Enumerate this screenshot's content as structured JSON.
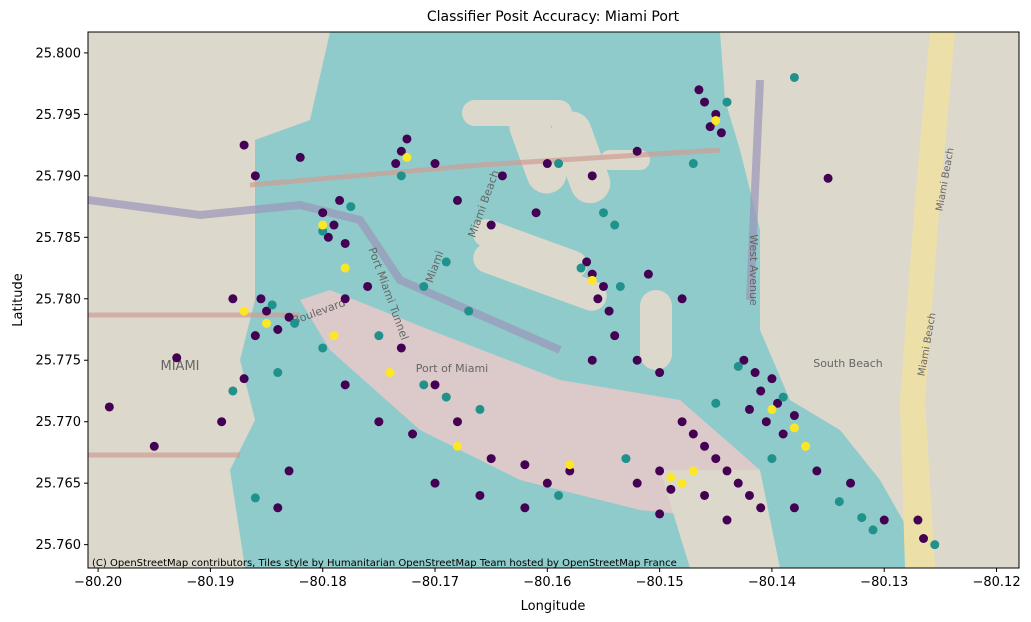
{
  "chart_data": {
    "type": "scatter",
    "title": "Classifier Posit Accuracy: Miami Port",
    "xlabel": "Longitude",
    "ylabel": "Latitude",
    "attribution": "(C) OpenStreetMap contributors, Tiles style by Humanitarian OpenStreetMap Team hosted by OpenStreetMap France",
    "map_labels": [
      "MIAMI",
      "Port of Miami",
      "Port Miami Tunnel",
      "Boulevard",
      "Miami",
      "Miami Beach",
      "West Avenue",
      "South Beach",
      "Miami Beach",
      "Miami Beach"
    ],
    "xlim": [
      -80.2009,
      -80.118
    ],
    "ylim": [
      25.7581,
      25.8017
    ],
    "xticks": [
      {
        "value": -80.2,
        "label": "−80.20"
      },
      {
        "value": -80.19,
        "label": "−80.19"
      },
      {
        "value": -80.18,
        "label": "−80.18"
      },
      {
        "value": -80.17,
        "label": "−80.17"
      },
      {
        "value": -80.16,
        "label": "−80.16"
      },
      {
        "value": -80.15,
        "label": "−80.15"
      },
      {
        "value": -80.14,
        "label": "−80.14"
      },
      {
        "value": -80.13,
        "label": "−80.13"
      },
      {
        "value": -80.12,
        "label": "−80.12"
      }
    ],
    "yticks": [
      {
        "value": 25.76,
        "label": "25.760"
      },
      {
        "value": 25.765,
        "label": "25.765"
      },
      {
        "value": 25.77,
        "label": "25.770"
      },
      {
        "value": 25.775,
        "label": "25.775"
      },
      {
        "value": 25.78,
        "label": "25.780"
      },
      {
        "value": 25.785,
        "label": "25.785"
      },
      {
        "value": 25.79,
        "label": "25.790"
      },
      {
        "value": 25.795,
        "label": "25.795"
      },
      {
        "value": 25.8,
        "label": "25.800"
      }
    ],
    "series": [
      {
        "color": "#440154",
        "x": [
          -80.185,
          -80.184,
          -80.186,
          -80.183,
          -80.1855,
          -80.18,
          -80.179,
          -80.1785,
          -80.1795,
          -80.178,
          -80.173,
          -80.1725,
          -80.1735,
          -80.146,
          -80.145,
          -80.1455,
          -80.1465,
          -80.1445,
          -80.156,
          -80.155,
          -80.1555,
          -80.1545,
          -80.1565,
          -80.1415,
          -80.141,
          -80.142,
          -80.1405,
          -80.14,
          -80.1425,
          -80.1395,
          -80.139,
          -80.138,
          -80.147,
          -80.146,
          -80.145,
          -80.144,
          -80.143,
          -80.148,
          -80.142,
          -80.141,
          -80.15,
          -80.152,
          -80.149,
          -80.187,
          -80.186,
          -80.182,
          -80.188,
          -80.193,
          -80.199,
          -80.195,
          -80.189,
          -80.187,
          -80.183,
          -80.184,
          -80.178,
          -80.175,
          -80.172,
          -80.17,
          -80.168,
          -80.165,
          -80.162,
          -80.16,
          -80.158,
          -80.156,
          -80.154,
          -80.152,
          -80.15,
          -80.148,
          -80.151,
          -80.161,
          -80.165,
          -80.16,
          -80.164,
          -80.168,
          -80.17,
          -80.156,
          -80.152,
          -80.135,
          -80.138,
          -80.133,
          -80.13,
          -80.1265,
          -80.127,
          -80.136,
          -80.144,
          -80.146,
          -80.15,
          -80.162,
          -80.166,
          -80.17,
          -80.173,
          -80.178,
          -80.176
        ],
        "values": [
          25.779,
          25.7775,
          25.777,
          25.7785,
          25.78,
          25.787,
          25.786,
          25.788,
          25.785,
          25.7845,
          25.792,
          25.793,
          25.791,
          25.796,
          25.795,
          25.794,
          25.797,
          25.7935,
          25.782,
          25.781,
          25.78,
          25.779,
          25.783,
          25.774,
          25.7725,
          25.771,
          25.77,
          25.7735,
          25.775,
          25.7715,
          25.769,
          25.7705,
          25.769,
          25.768,
          25.767,
          25.766,
          25.765,
          25.77,
          25.764,
          25.763,
          25.766,
          25.765,
          25.7645,
          25.7925,
          25.79,
          25.7915,
          25.78,
          25.7752,
          25.7712,
          25.768,
          25.77,
          25.7735,
          25.766,
          25.763,
          25.773,
          25.77,
          25.769,
          25.773,
          25.77,
          25.767,
          25.7665,
          25.765,
          25.766,
          25.775,
          25.777,
          25.775,
          25.774,
          25.78,
          25.782,
          25.787,
          25.786,
          25.791,
          25.79,
          25.788,
          25.791,
          25.79,
          25.792,
          25.7898,
          25.763,
          25.765,
          25.762,
          25.7605,
          25.762,
          25.766,
          25.762,
          25.764,
          25.7625,
          25.763,
          25.764,
          25.765,
          25.776,
          25.78,
          25.781
        ]
      },
      {
        "color": "#21918c",
        "x": [
          -80.1845,
          -80.1825,
          -80.18,
          -80.1775,
          -80.173,
          -80.144,
          -80.147,
          -80.157,
          -80.1535,
          -80.143,
          -80.139,
          -80.145,
          -80.14,
          -80.153,
          -80.159,
          -80.166,
          -80.169,
          -80.171,
          -80.175,
          -80.18,
          -80.184,
          -80.188,
          -80.186,
          -80.171,
          -80.169,
          -80.167,
          -80.155,
          -80.154,
          -80.134,
          -80.131,
          -80.1255,
          -80.132,
          -80.159,
          -80.138
        ],
        "values": [
          25.7795,
          25.778,
          25.7855,
          25.7875,
          25.79,
          25.796,
          25.791,
          25.7825,
          25.781,
          25.7745,
          25.772,
          25.7715,
          25.767,
          25.767,
          25.764,
          25.771,
          25.772,
          25.773,
          25.777,
          25.776,
          25.774,
          25.7725,
          25.7638,
          25.781,
          25.783,
          25.779,
          25.787,
          25.786,
          25.7635,
          25.7612,
          25.76,
          25.7622,
          25.791,
          25.798
        ]
      },
      {
        "color": "#fde725",
        "x": [
          -80.185,
          -80.18,
          -80.178,
          -80.1725,
          -80.145,
          -80.156,
          -80.14,
          -80.138,
          -80.137,
          -80.147,
          -80.148,
          -80.149,
          -80.158,
          -80.168,
          -80.174,
          -80.179,
          -80.187
        ],
        "values": [
          25.778,
          25.786,
          25.7825,
          25.7915,
          25.7945,
          25.7815,
          25.771,
          25.7695,
          25.768,
          25.766,
          25.765,
          25.7655,
          25.7665,
          25.768,
          25.774,
          25.777,
          25.779
        ]
      }
    ]
  }
}
